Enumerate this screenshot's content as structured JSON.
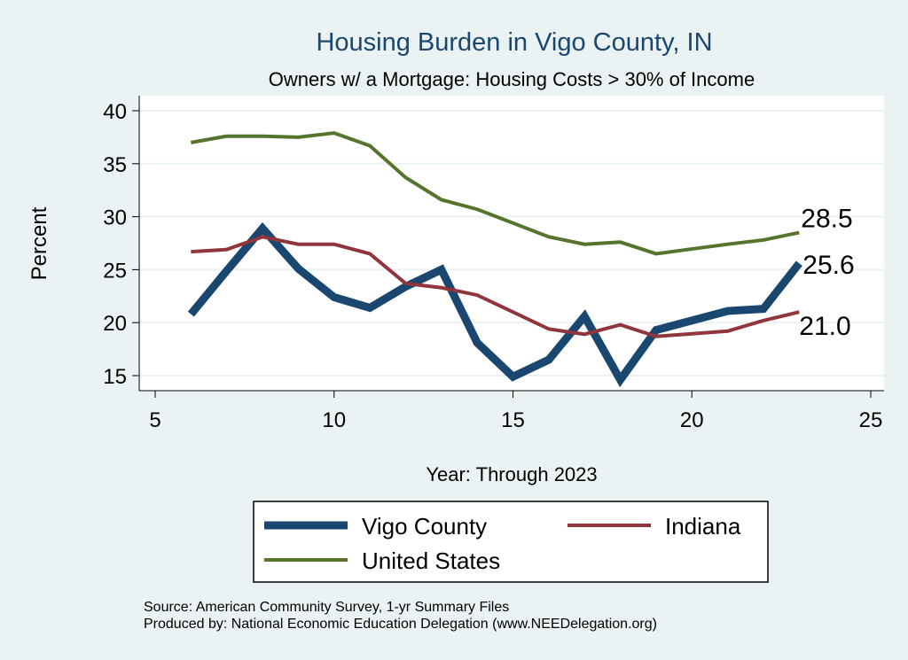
{
  "chart_data": {
    "type": "line",
    "title": "Housing Burden in Vigo County, IN",
    "subtitle": "Owners w/ a Mortgage: Housing Costs > 30% of Income",
    "xlabel": "Year: Through 2023",
    "ylabel": "Percent",
    "xlim": [
      5,
      25
    ],
    "ylim": [
      15,
      40
    ],
    "xticks": [
      5,
      10,
      15,
      20,
      25
    ],
    "yticks": [
      15,
      20,
      25,
      30,
      35,
      40
    ],
    "grid": true,
    "legend_position": "bottom",
    "x": [
      6,
      7,
      8,
      9,
      10,
      11,
      12,
      13,
      14,
      15,
      16,
      17,
      18,
      19,
      21,
      22,
      23
    ],
    "series": [
      {
        "name": "Vigo County",
        "color": "#1a476f",
        "values": [
          20.8,
          24.9,
          28.9,
          25.1,
          22.4,
          21.4,
          23.4,
          25.0,
          18.1,
          14.9,
          16.5,
          20.6,
          14.6,
          19.3,
          21.1,
          21.3,
          25.6
        ],
        "end_label": "25.6"
      },
      {
        "name": "Indiana",
        "color": "#90353b",
        "values": [
          26.7,
          26.9,
          28.1,
          27.4,
          27.4,
          26.5,
          23.7,
          23.3,
          22.6,
          21.0,
          19.4,
          18.9,
          19.8,
          18.7,
          19.2,
          20.2,
          21.0
        ],
        "end_label": "21.0"
      },
      {
        "name": "United States",
        "color": "#55752f",
        "values": [
          37.0,
          37.6,
          37.6,
          37.5,
          37.9,
          36.7,
          33.7,
          31.6,
          30.7,
          29.4,
          28.1,
          27.4,
          27.6,
          26.5,
          27.4,
          27.8,
          28.5
        ],
        "end_label": "28.5"
      }
    ],
    "notes": [
      "Source: American Community Survey, 1-yr Summary Files",
      "Produced by: National Economic Education Delegation (www.NEEDelegation.org)"
    ]
  },
  "colors": {
    "background": "#eaf2f3",
    "plot": "#ffffff",
    "grid": "#eaf2f3",
    "title": "#1a476f"
  }
}
